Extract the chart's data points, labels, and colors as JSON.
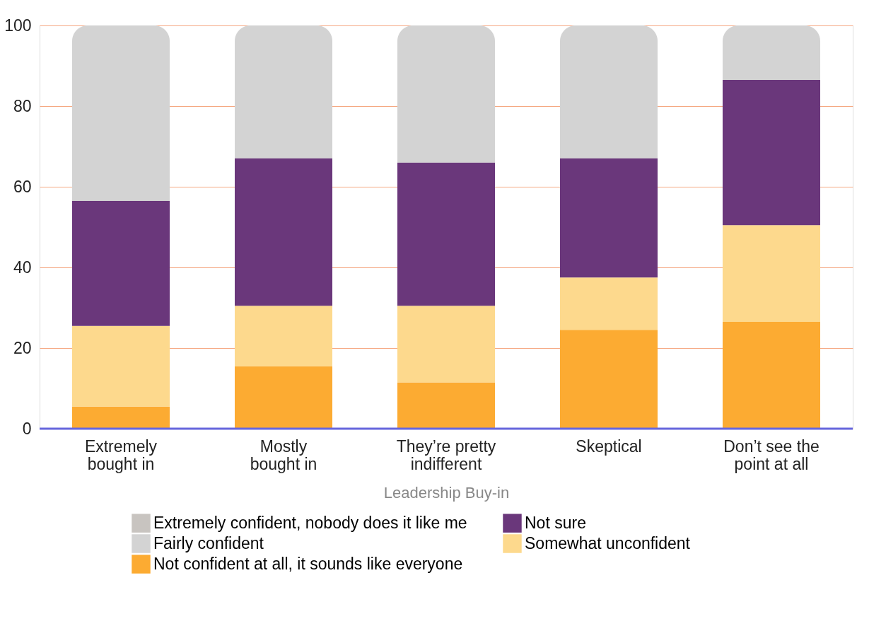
{
  "chart_data": {
    "type": "bar",
    "stacked": true,
    "xlabel": "Leadership Buy-in",
    "categories": [
      "Extremely bought in",
      "Mostly bought in",
      "They’re pretty indifferent",
      "Skeptical",
      "Don’t see the point at all"
    ],
    "series": [
      {
        "name": "Not confident at all, it sounds like everyone",
        "color": "#fcab32",
        "values": [
          5.5,
          15.5,
          11.5,
          24.5,
          26.5
        ]
      },
      {
        "name": "Somewhat unconfident",
        "color": "#fdd98d",
        "values": [
          20,
          15,
          19,
          13,
          24
        ]
      },
      {
        "name": "Not sure",
        "color": "#6a377b",
        "values": [
          31,
          36.5,
          35.5,
          29.5,
          36
        ]
      },
      {
        "name": "Fairly confident",
        "color": "#d3d3d3",
        "values": [
          43.5,
          33,
          34,
          33,
          13.5
        ]
      },
      {
        "name": "Extremely confident, nobody does it like me",
        "color": "#c8c4c0",
        "values": [
          null,
          null,
          null,
          null,
          null
        ]
      }
    ],
    "ylim": [
      0,
      100
    ],
    "yticks": [
      0,
      20,
      40,
      60,
      80,
      100
    ],
    "grid": "y",
    "legend": "bottom"
  }
}
